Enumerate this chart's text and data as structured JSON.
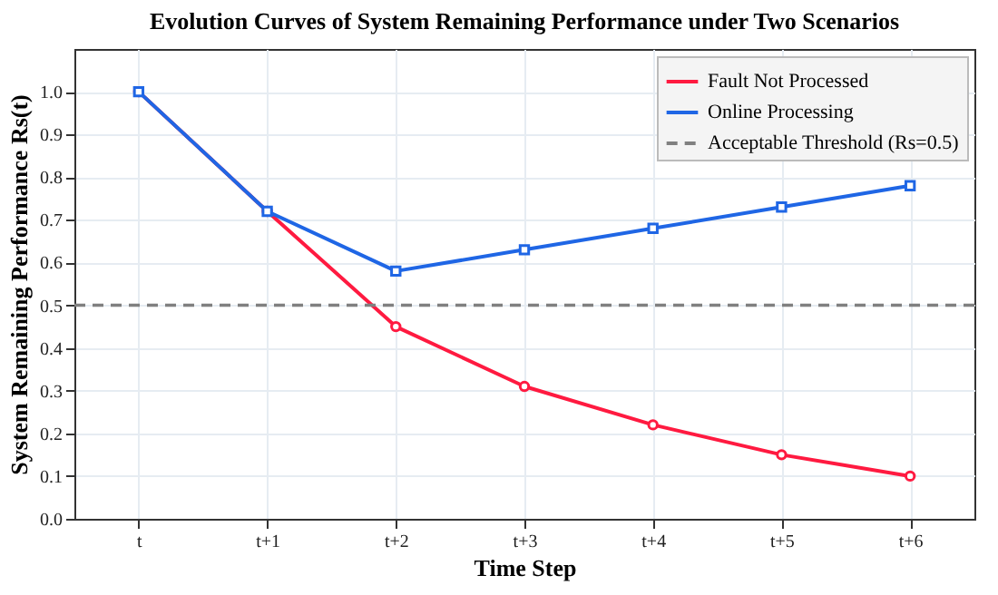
{
  "chart_data": {
    "type": "line",
    "title": "Evolution Curves of System Remaining Performance under Two Scenarios",
    "xlabel": "Time Step",
    "ylabel": "System Remaining Performance Rs(t)",
    "categories": [
      "t",
      "t+1",
      "t+2",
      "t+3",
      "t+4",
      "t+5",
      "t+6"
    ],
    "series": [
      {
        "name": "Fault Not Processed",
        "color": "#ff1a40",
        "marker": "circle",
        "values": [
          1.0,
          0.72,
          0.45,
          0.31,
          0.22,
          0.15,
          0.1
        ]
      },
      {
        "name": "Online Processing",
        "color": "#1f66e5",
        "marker": "square",
        "values": [
          1.0,
          0.72,
          0.58,
          0.63,
          0.68,
          0.73,
          0.78
        ]
      }
    ],
    "ref_lines": [
      {
        "axis": "y",
        "value": 0.5,
        "label": "Acceptable Threshold (Rs=0.5)",
        "color": "#808080",
        "line_style": "dashed"
      }
    ],
    "ylim": [
      0,
      1.1
    ],
    "yticks": [
      {
        "value": 0,
        "label": "0.0"
      },
      {
        "value": 0.1,
        "label": "0.1"
      },
      {
        "value": 0.2,
        "label": "0.2"
      },
      {
        "value": 0.3,
        "label": "0.3"
      },
      {
        "value": 0.4,
        "label": "0.4"
      },
      {
        "value": 0.5,
        "label": "0.5"
      },
      {
        "value": 0.6,
        "label": "0.6"
      },
      {
        "value": 0.7,
        "label": "0.7"
      },
      {
        "value": 0.8,
        "label": "0.8"
      },
      {
        "value": 0.9,
        "label": "0.9"
      },
      {
        "value": 1.0,
        "label": "1.0"
      }
    ],
    "grid": true,
    "legend": "top right",
    "line_style": "solid"
  }
}
